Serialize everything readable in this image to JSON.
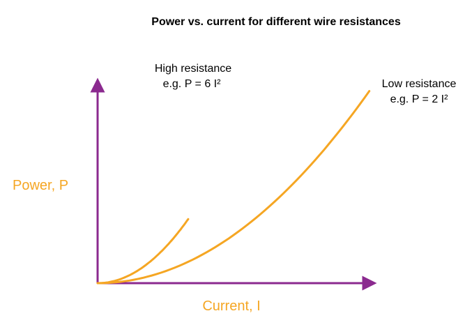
{
  "chart_data": {
    "type": "line",
    "title": "Power vs. current for different wire resistances",
    "xlabel": "Current, I",
    "ylabel": "Power, P",
    "grid": false,
    "legend": "none",
    "series": [
      {
        "label_line1": "High resistance",
        "label_line2": "e.g. P = 6 I²",
        "coefficient": 6,
        "x": [
          0,
          0.5,
          1,
          1.5,
          2,
          2.5,
          3
        ],
        "y": [
          0,
          1.5,
          6,
          13.5,
          24,
          37.5,
          54
        ]
      },
      {
        "label_line1": "Low resistance",
        "label_line2": "e.g. P = 2 I²",
        "coefficient": 2,
        "x": [
          0,
          1,
          2,
          3,
          4,
          5,
          6,
          7,
          8,
          9
        ],
        "y": [
          0,
          2,
          8,
          18,
          32,
          50,
          72,
          98,
          128,
          162
        ]
      }
    ],
    "colors": {
      "axes": "#8B2A8F",
      "curves": "#F5A623",
      "axis_labels": "#F5A623",
      "text": "#000000"
    }
  }
}
